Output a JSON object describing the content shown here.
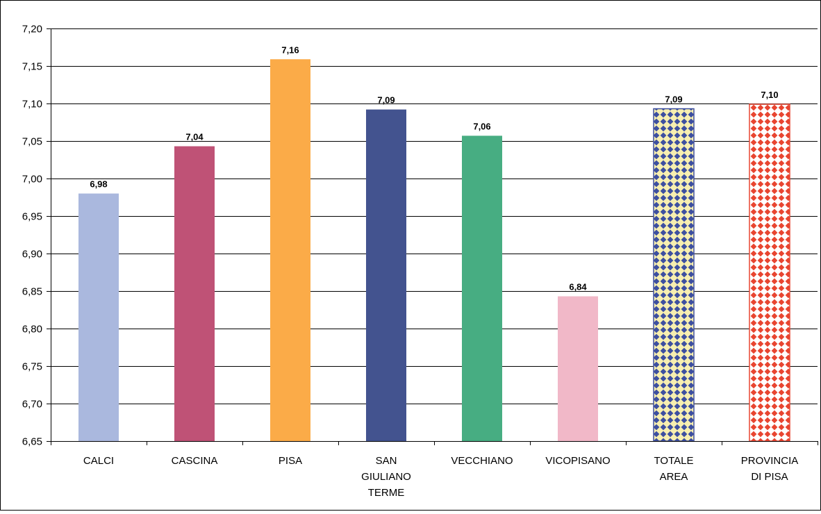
{
  "chart_data": {
    "type": "bar",
    "categories": [
      [
        "CALCI"
      ],
      [
        "CASCINA"
      ],
      [
        "PISA"
      ],
      [
        "SAN",
        "GIULIANO",
        "TERME"
      ],
      [
        "VECCHIANO"
      ],
      [
        "VICOPISANO"
      ],
      [
        "TOTALE",
        "AREA"
      ],
      [
        "PROVINCIA",
        "DI PISA"
      ]
    ],
    "values": [
      6.98,
      7.04,
      7.16,
      7.09,
      7.06,
      6.84,
      7.09,
      7.1
    ],
    "bar_values": [
      6.98,
      7.043,
      7.159,
      7.092,
      7.057,
      6.843,
      7.093,
      7.099
    ],
    "data_labels": [
      "6,98",
      "7,04",
      "7,16",
      "7,09",
      "7,06",
      "6,84",
      "7,09",
      "7,10"
    ],
    "colors": [
      "#aab8de",
      "#bf5276",
      "#fbab48",
      "#43538f",
      "#47ad82",
      "#f1b8c8",
      "pattern-blue",
      "pattern-red"
    ],
    "pattern_colors": {
      "blue": {
        "fg": "#3d4fa0",
        "bg": "#f7efb0"
      },
      "red": {
        "fg": "#e84530",
        "bg": "#ffffff"
      }
    },
    "yticks": [
      "6,65",
      "6,70",
      "6,75",
      "6,80",
      "6,85",
      "6,90",
      "6,95",
      "7,00",
      "7,05",
      "7,10",
      "7,15",
      "7,20"
    ],
    "ylim": [
      6.65,
      7.2
    ],
    "ystep": 0.05,
    "grid": true,
    "legend": "none",
    "title": "",
    "xlabel": "",
    "ylabel": ""
  }
}
